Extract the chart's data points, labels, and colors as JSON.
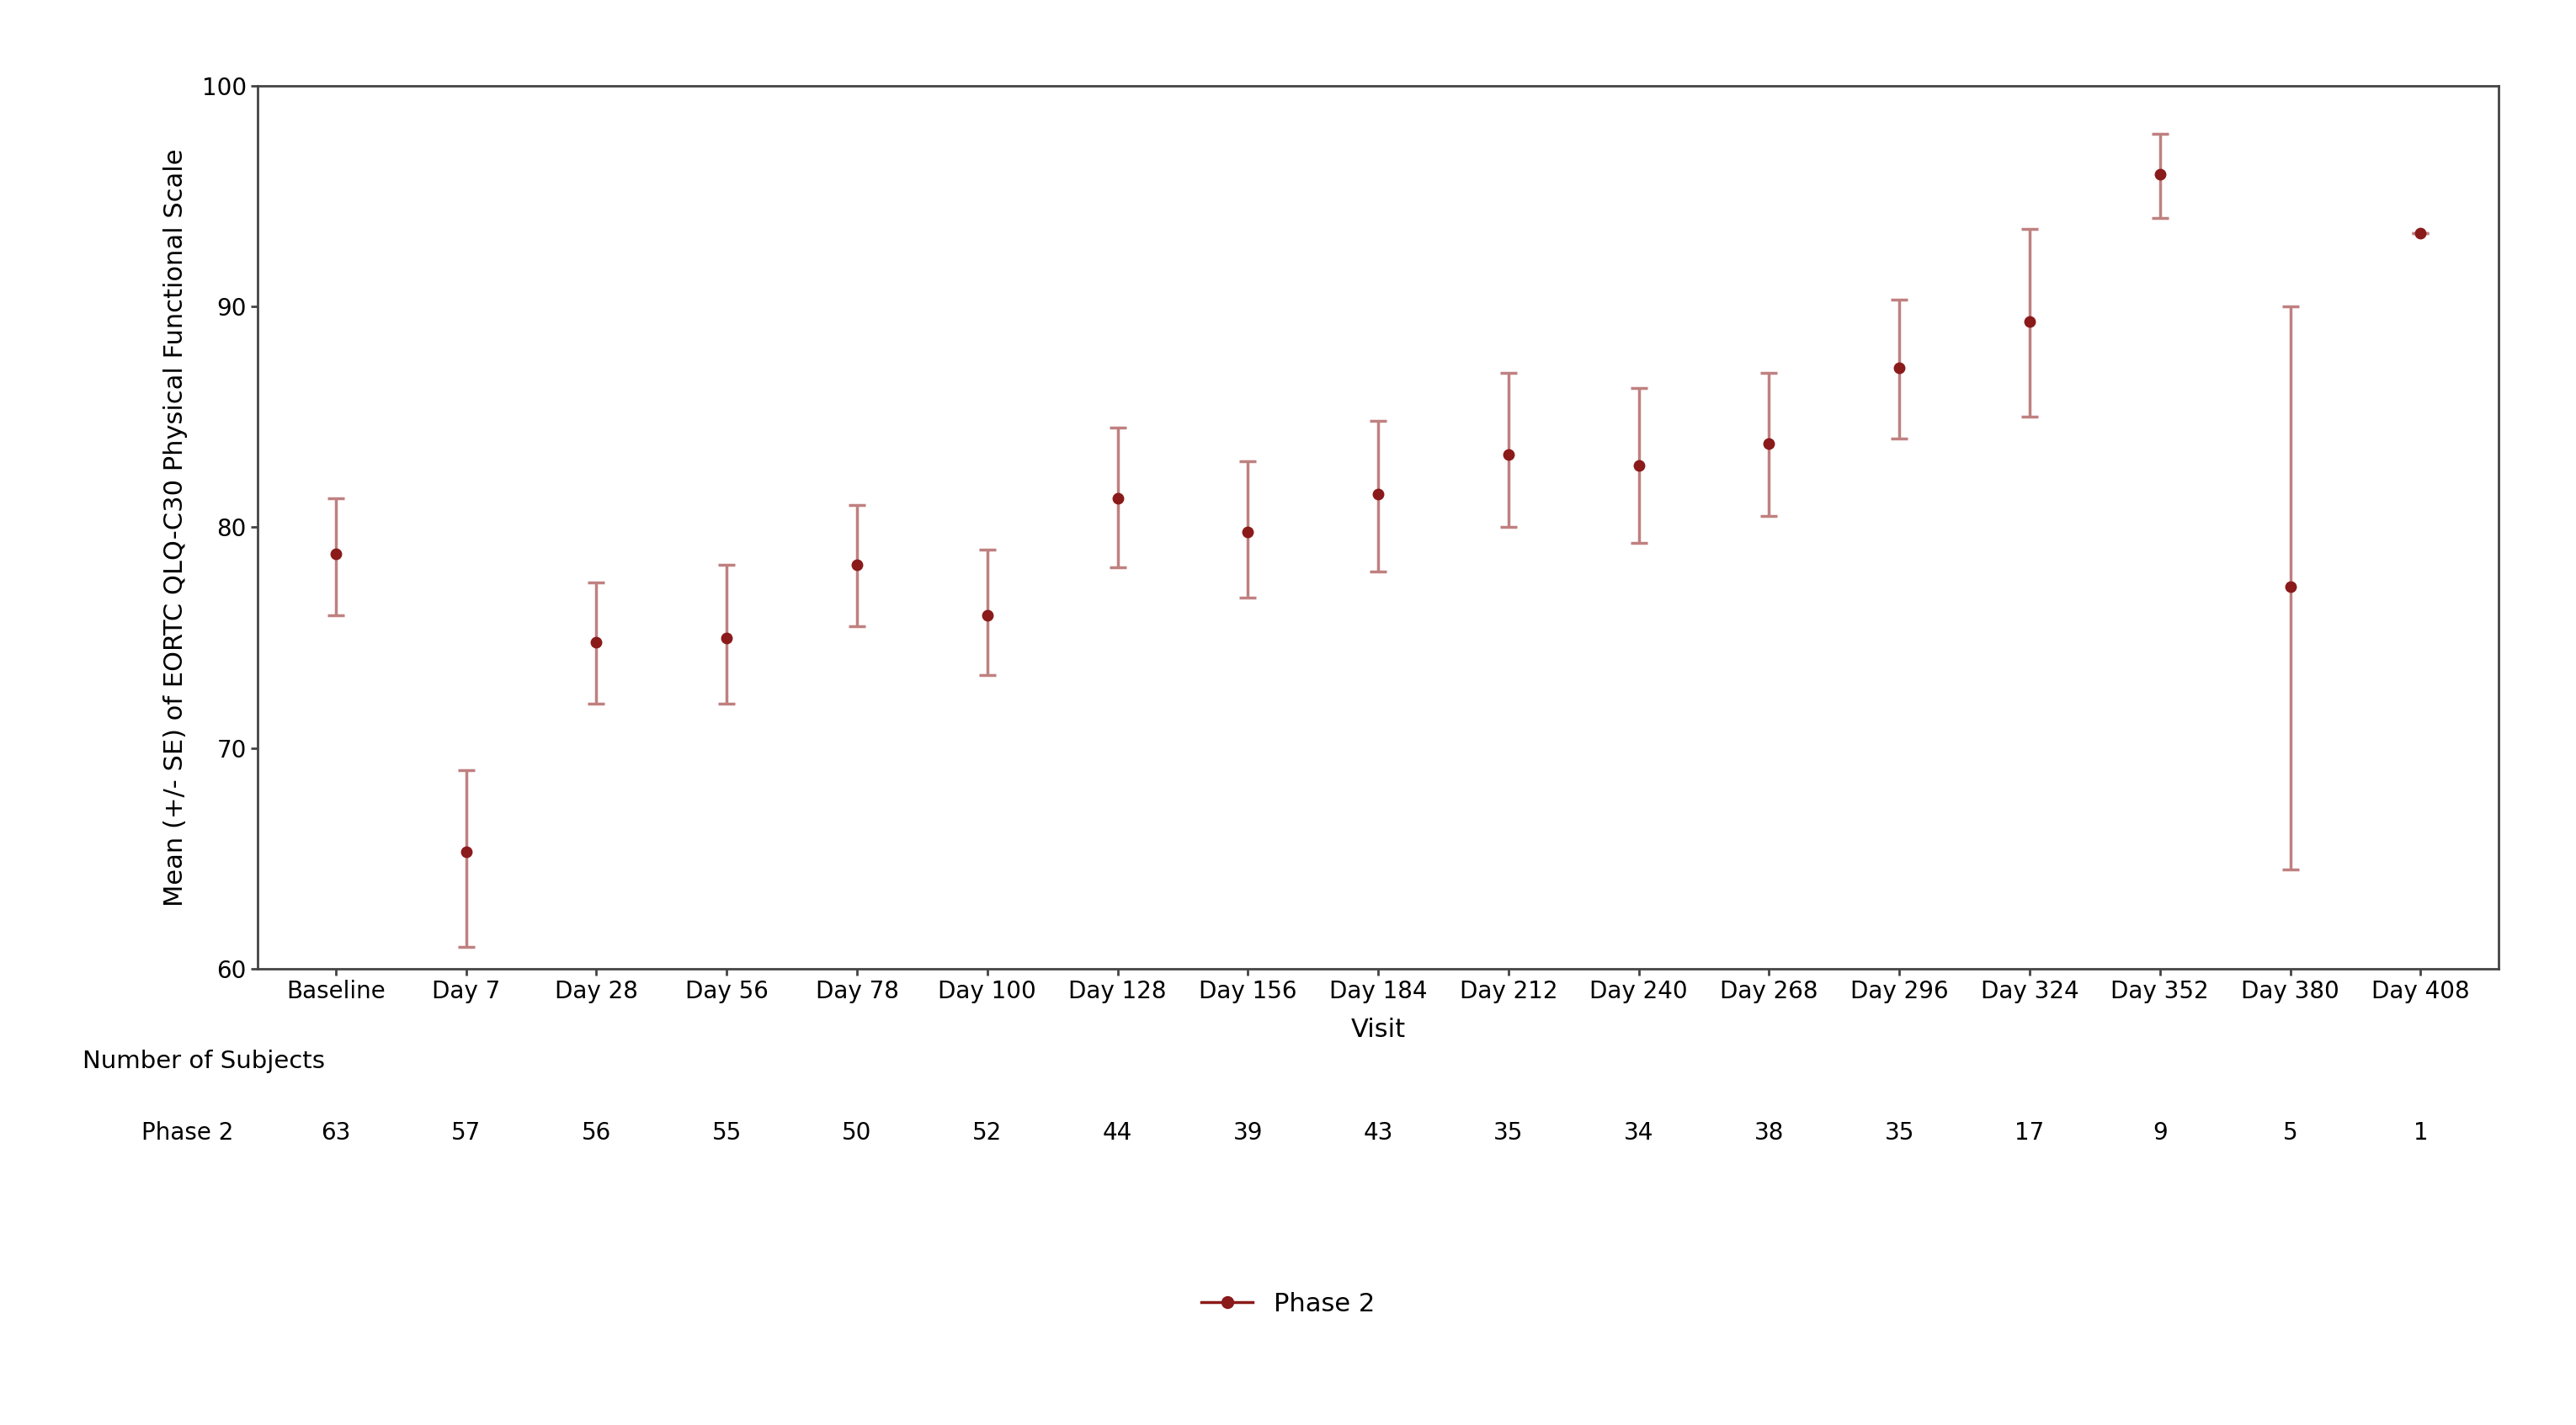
{
  "visits": [
    "Baseline",
    "Day 7",
    "Day 28",
    "Day 56",
    "Day 78",
    "Day 100",
    "Day 128",
    "Day 156",
    "Day 184",
    "Day 212",
    "Day 240",
    "Day 268",
    "Day 296",
    "Day 324",
    "Day 352",
    "Day 380",
    "Day 408"
  ],
  "means": [
    78.8,
    65.3,
    74.8,
    75.0,
    78.3,
    76.0,
    81.3,
    79.8,
    81.5,
    83.3,
    82.8,
    83.8,
    87.2,
    89.3,
    96.0,
    77.3,
    93.3
  ],
  "se_upper": [
    81.3,
    69.0,
    77.5,
    78.3,
    81.0,
    79.0,
    84.5,
    83.0,
    84.8,
    87.0,
    86.3,
    87.0,
    90.3,
    93.5,
    97.8,
    90.0,
    93.3
  ],
  "se_lower": [
    76.0,
    61.0,
    72.0,
    72.0,
    75.5,
    73.3,
    78.2,
    76.8,
    78.0,
    80.0,
    79.3,
    80.5,
    84.0,
    85.0,
    94.0,
    64.5,
    93.3
  ],
  "n_subjects": [
    63,
    57,
    56,
    55,
    50,
    52,
    44,
    39,
    43,
    35,
    34,
    38,
    35,
    17,
    9,
    5,
    1
  ],
  "line_color": "#8B1A1A",
  "error_color": "#C08080",
  "marker_color": "#8B1A1A",
  "background_color": "#ffffff",
  "ylabel": "Mean (+/- SE) of EORTC QLQ-C30 Physical Functional Scale",
  "xlabel": "Visit",
  "ylim": [
    60,
    100
  ],
  "yticks": [
    60,
    70,
    80,
    90,
    100
  ],
  "axis_fontsize": 22,
  "tick_fontsize": 20,
  "table_fontsize": 20,
  "legend_label": "Phase 2",
  "table_row_label": "Phase 2",
  "table_header": "Number of Subjects"
}
